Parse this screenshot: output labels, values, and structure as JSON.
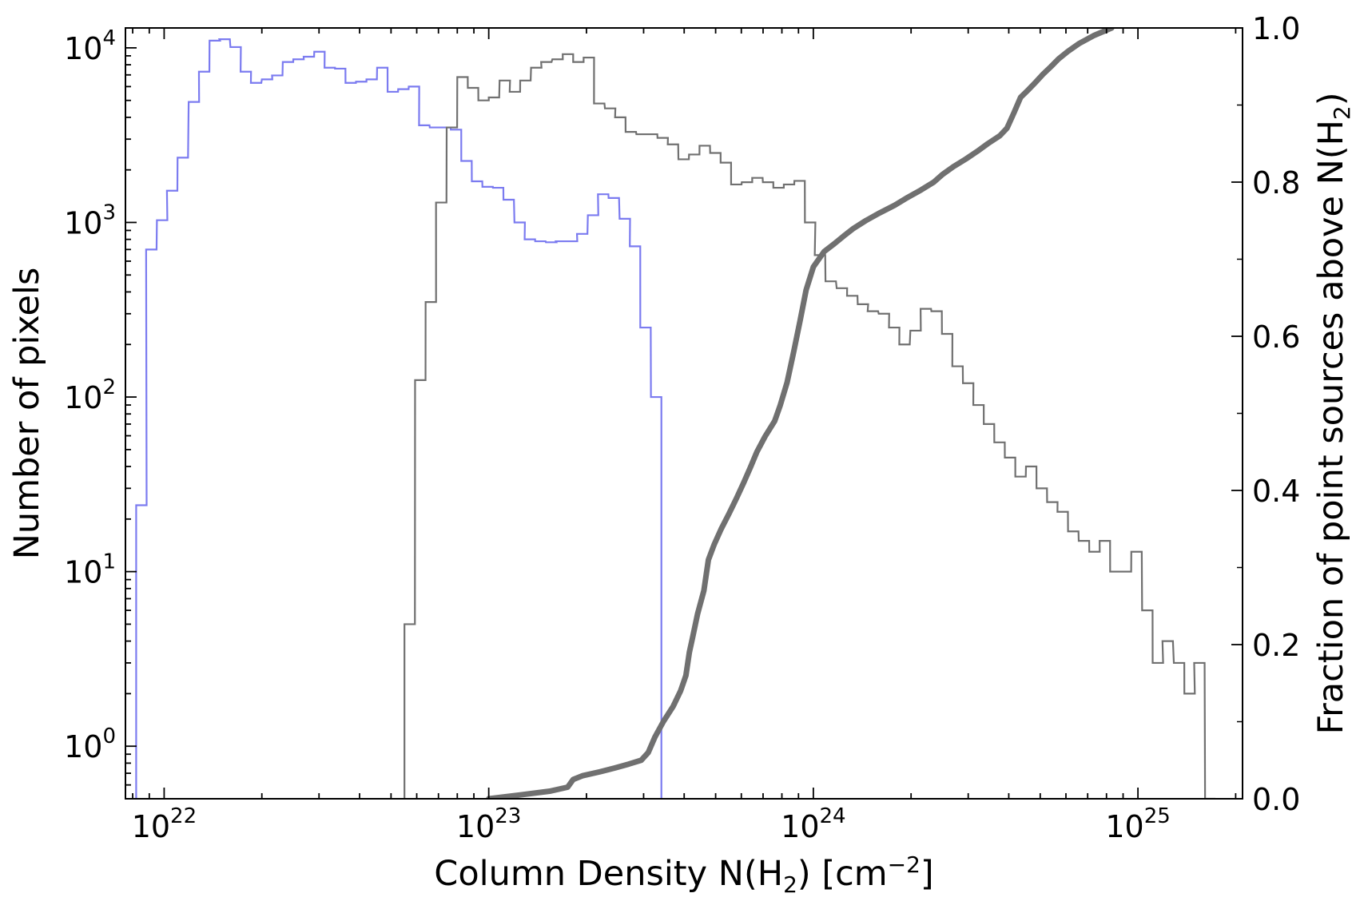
{
  "chart_data": {
    "type": "step-histogram-with-cumulative-line",
    "x_axis": {
      "label_prefix": "Column Density N(H",
      "label_sub": "2",
      "label_mid": ") [cm",
      "label_sup": "−2",
      "label_suffix": "]",
      "scale": "log",
      "range": [
        7.6e+21,
        2.1e+25
      ],
      "ticks": [
        {
          "base": "10",
          "exp": "22",
          "value": 1e+22
        },
        {
          "base": "10",
          "exp": "23",
          "value": 1e+23
        },
        {
          "base": "10",
          "exp": "24",
          "value": 1e+24
        },
        {
          "base": "10",
          "exp": "25",
          "value": 1e+25
        }
      ]
    },
    "y_axis_left": {
      "label": "Number of pixels",
      "scale": "log",
      "range": [
        0.5,
        13000
      ],
      "ticks": [
        {
          "base": "10",
          "exp": "0",
          "value": 1
        },
        {
          "base": "10",
          "exp": "1",
          "value": 10
        },
        {
          "base": "10",
          "exp": "2",
          "value": 100
        },
        {
          "base": "10",
          "exp": "3",
          "value": 1000
        },
        {
          "base": "10",
          "exp": "4",
          "value": 10000
        }
      ]
    },
    "y_axis_right": {
      "label_prefix": "Fraction of point sources above N(H",
      "label_sub": "2",
      "label_suffix": ")",
      "scale": "linear",
      "range": [
        0,
        1
      ],
      "ticks": [
        "0.0",
        "0.2",
        "0.4",
        "0.6",
        "0.8",
        "1.0"
      ]
    },
    "grid": false,
    "series": [
      {
        "color": "#7b7bf0",
        "axis": "left",
        "style": "step",
        "log_bin_width": 0.0322,
        "bins": [
          [
            8.2e+21,
            24
          ],
          [
            8.8e+21,
            700
          ],
          [
            9.5e+21,
            1030
          ],
          [
            1.02e+22,
            1520
          ],
          [
            1.1e+22,
            2350
          ],
          [
            1.19e+22,
            4900
          ],
          [
            1.28e+22,
            7300
          ],
          [
            1.38e+22,
            11000
          ],
          [
            1.48e+22,
            11200
          ],
          [
            1.6e+22,
            10100
          ],
          [
            1.72e+22,
            7300
          ],
          [
            1.85e+22,
            6300
          ],
          [
            2e+22,
            6600
          ],
          [
            2.15e+22,
            6950
          ],
          [
            2.32e+22,
            8300
          ],
          [
            2.5e+22,
            8600
          ],
          [
            2.69e+22,
            8900
          ],
          [
            2.9e+22,
            9500
          ],
          [
            3.12e+22,
            7700
          ],
          [
            3.36e+22,
            7600
          ],
          [
            3.62e+22,
            6300
          ],
          [
            3.9e+22,
            6400
          ],
          [
            4.2e+22,
            6600
          ],
          [
            4.53e+22,
            7700
          ],
          [
            4.88e+22,
            5600
          ],
          [
            5.26e+22,
            5800
          ],
          [
            5.67e+22,
            6000
          ],
          [
            6.1e+22,
            3600
          ],
          [
            6.58e+22,
            3500
          ],
          [
            7.09e+22,
            3500
          ],
          [
            7.64e+22,
            3400
          ],
          [
            8.23e+22,
            2250
          ],
          [
            8.87e+22,
            1720
          ],
          [
            9.56e+22,
            1600
          ],
          [
            1.03e+23,
            1580
          ],
          [
            1.11e+23,
            1350
          ],
          [
            1.2e+23,
            1000
          ],
          [
            1.29e+23,
            800
          ],
          [
            1.39e+23,
            780
          ],
          [
            1.5e+23,
            770
          ],
          [
            1.61e+23,
            780
          ],
          [
            1.74e+23,
            780
          ],
          [
            1.87e+23,
            860
          ],
          [
            2.02e+23,
            1100
          ],
          [
            2.17e+23,
            1450
          ],
          [
            2.34e+23,
            1380
          ],
          [
            2.53e+23,
            1050
          ],
          [
            2.72e+23,
            730
          ],
          [
            2.93e+23,
            250
          ],
          [
            3.16e+23,
            100
          ]
        ]
      },
      {
        "color": "#707070",
        "axis": "left",
        "style": "step",
        "log_bin_width": 0.0322,
        "bins": [
          [
            5.5e+22,
            5
          ],
          [
            5.93e+22,
            125
          ],
          [
            6.39e+22,
            350
          ],
          [
            6.88e+22,
            1300
          ],
          [
            7.42e+22,
            3500
          ],
          [
            8e+22,
            6800
          ],
          [
            8.62e+22,
            5900
          ],
          [
            9.29e+22,
            5000
          ],
          [
            1e+23,
            5200
          ],
          [
            1.08e+23,
            6500
          ],
          [
            1.16e+23,
            5600
          ],
          [
            1.25e+23,
            6500
          ],
          [
            1.35e+23,
            7700
          ],
          [
            1.45e+23,
            8300
          ],
          [
            1.57e+23,
            8600
          ],
          [
            1.69e+23,
            9200
          ],
          [
            1.82e+23,
            8300
          ],
          [
            1.96e+23,
            8800
          ],
          [
            2.11e+23,
            4800
          ],
          [
            2.28e+23,
            4500
          ],
          [
            2.45e+23,
            4000
          ],
          [
            2.64e+23,
            3300
          ],
          [
            2.85e+23,
            3200
          ],
          [
            3.07e+23,
            3200
          ],
          [
            3.31e+23,
            3050
          ],
          [
            3.56e+23,
            2800
          ],
          [
            3.84e+23,
            2300
          ],
          [
            4.14e+23,
            2450
          ],
          [
            4.46e+23,
            2750
          ],
          [
            4.81e+23,
            2500
          ],
          [
            5.18e+23,
            2200
          ],
          [
            5.58e+23,
            1650
          ],
          [
            6.02e+23,
            1700
          ],
          [
            6.48e+23,
            1800
          ],
          [
            6.99e+23,
            1700
          ],
          [
            7.53e+23,
            1580
          ],
          [
            8.11e+23,
            1650
          ],
          [
            8.74e+23,
            1730
          ],
          [
            9.42e+23,
            1000
          ],
          [
            1.01e+24,
            650
          ],
          [
            1.09e+24,
            460
          ],
          [
            1.18e+24,
            420
          ],
          [
            1.27e+24,
            380
          ],
          [
            1.37e+24,
            340
          ],
          [
            1.47e+24,
            310
          ],
          [
            1.59e+24,
            300
          ],
          [
            1.71e+24,
            250
          ],
          [
            1.84e+24,
            200
          ],
          [
            1.99e+24,
            240
          ],
          [
            2.14e+24,
            320
          ],
          [
            2.31e+24,
            310
          ],
          [
            2.49e+24,
            230
          ],
          [
            2.68e+24,
            150
          ],
          [
            2.89e+24,
            120
          ],
          [
            3.11e+24,
            90
          ],
          [
            3.35e+24,
            70
          ],
          [
            3.61e+24,
            55
          ],
          [
            3.89e+24,
            45
          ],
          [
            4.19e+24,
            35
          ],
          [
            4.52e+24,
            40
          ],
          [
            4.87e+24,
            30
          ],
          [
            5.25e+24,
            25
          ],
          [
            5.65e+24,
            22
          ],
          [
            6.09e+24,
            17
          ],
          [
            6.57e+24,
            15
          ],
          [
            7.08e+24,
            13
          ],
          [
            7.62e+24,
            15
          ],
          [
            8.21e+24,
            10
          ],
          [
            8.85e+24,
            10
          ],
          [
            9.54e+24,
            13
          ],
          [
            1.03e+25,
            6
          ],
          [
            1.11e+25,
            3
          ],
          [
            1.19e+25,
            4
          ],
          [
            1.29e+25,
            3
          ],
          [
            1.39e+25,
            2
          ],
          [
            1.49e+25,
            3
          ],
          [
            1.61e+25,
            0.5
          ]
        ]
      },
      {
        "color": "#707070",
        "axis": "right",
        "style": "thick-line",
        "points": [
          [
            1e+23,
            0.0
          ],
          [
            1.25e+23,
            0.005
          ],
          [
            1.55e+23,
            0.01
          ],
          [
            1.75e+23,
            0.015
          ],
          [
            1.82e+23,
            0.025
          ],
          [
            1.95e+23,
            0.03
          ],
          [
            2.2e+23,
            0.035
          ],
          [
            2.45e+23,
            0.04
          ],
          [
            2.7e+23,
            0.045
          ],
          [
            2.95e+23,
            0.05
          ],
          [
            3.1e+23,
            0.06
          ],
          [
            3.25e+23,
            0.08
          ],
          [
            3.45e+23,
            0.1
          ],
          [
            3.7e+23,
            0.12
          ],
          [
            3.9e+23,
            0.14
          ],
          [
            4.05e+23,
            0.16
          ],
          [
            4.15e+23,
            0.19
          ],
          [
            4.25e+23,
            0.21
          ],
          [
            4.4e+23,
            0.24
          ],
          [
            4.6e+23,
            0.27
          ],
          [
            4.75e+23,
            0.31
          ],
          [
            4.95e+23,
            0.33
          ],
          [
            5.2e+23,
            0.35
          ],
          [
            5.5e+23,
            0.37
          ],
          [
            5.8e+23,
            0.39
          ],
          [
            6.1e+23,
            0.41
          ],
          [
            6.4e+23,
            0.43
          ],
          [
            6.7e+23,
            0.45
          ],
          [
            7.1e+23,
            0.47
          ],
          [
            7.6e+23,
            0.49
          ],
          [
            7.9e+23,
            0.51
          ],
          [
            8.3e+23,
            0.54
          ],
          [
            8.7e+23,
            0.58
          ],
          [
            9.1e+23,
            0.62
          ],
          [
            9.5e+23,
            0.66
          ],
          [
            1e+24,
            0.69
          ],
          [
            1.08e+24,
            0.71
          ],
          [
            1.16e+24,
            0.72
          ],
          [
            1.24e+24,
            0.73
          ],
          [
            1.33e+24,
            0.74
          ],
          [
            1.45e+24,
            0.75
          ],
          [
            1.6e+24,
            0.76
          ],
          [
            1.78e+24,
            0.77
          ],
          [
            1.95e+24,
            0.78
          ],
          [
            2.15e+24,
            0.79
          ],
          [
            2.35e+24,
            0.8
          ],
          [
            2.5e+24,
            0.81
          ],
          [
            2.7e+24,
            0.82
          ],
          [
            2.95e+24,
            0.83
          ],
          [
            3.2e+24,
            0.84
          ],
          [
            3.45e+24,
            0.85
          ],
          [
            3.75e+24,
            0.86
          ],
          [
            3.95e+24,
            0.87
          ],
          [
            4.15e+24,
            0.89
          ],
          [
            4.35e+24,
            0.91
          ],
          [
            4.6e+24,
            0.92
          ],
          [
            4.85e+24,
            0.93
          ],
          [
            5.1e+24,
            0.94
          ],
          [
            5.4e+24,
            0.95
          ],
          [
            5.7e+24,
            0.96
          ],
          [
            6.1e+24,
            0.97
          ],
          [
            6.6e+24,
            0.98
          ],
          [
            7.3e+24,
            0.99
          ],
          [
            8.3e+24,
            1.0
          ]
        ]
      }
    ]
  }
}
